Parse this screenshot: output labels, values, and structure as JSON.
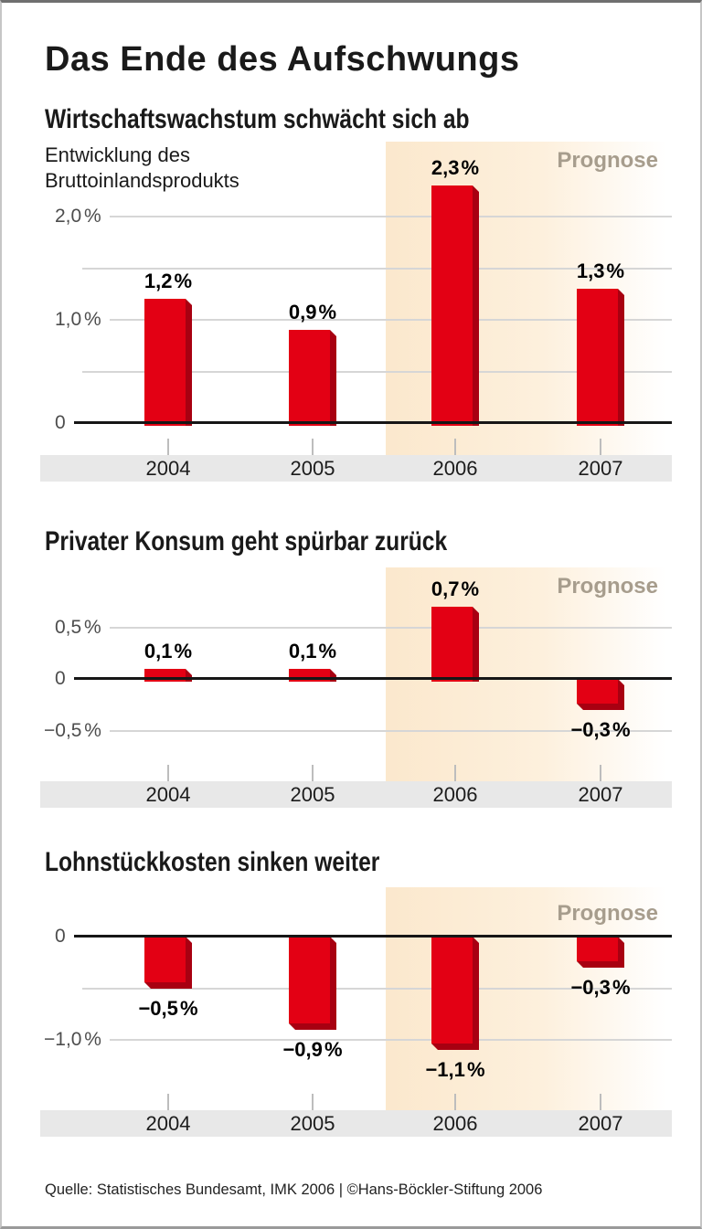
{
  "page": {
    "title": "Das Ende des Aufschwungs",
    "forecast_label": "Prognose",
    "source_line": "Quelle: Statistisches Bundesamt, IMK 2006 | ©Hans-Böckler-Stiftung 2006"
  },
  "colors": {
    "bar_red": "#e30014",
    "bar_dark_red": "#a80011",
    "forecast_band_strong": "#fbe8cd",
    "forecast_band_mid": "#fdf0dd",
    "forecast_text": "#a79d8d",
    "year_band_gray": "#e8e8e8",
    "gridline_gray": "#d6d6d6",
    "axis_black": "#161616",
    "tick_gray": "#bdbdbd"
  },
  "chart_data": [
    {
      "type": "bar",
      "title": "Wirtschaftswachstum schwächt sich ab",
      "subtitle": "Entwicklung des\nBruttoinlandsprodukts",
      "categories": [
        "2004",
        "2005",
        "2006",
        "2007"
      ],
      "values": [
        1.2,
        0.9,
        2.3,
        1.3
      ],
      "value_labels": [
        "1,2 %",
        "0,9 %",
        "2,3 %",
        "1,3 %"
      ],
      "unit": "percent",
      "ylim": [
        0,
        2.5
      ],
      "yticks": [
        {
          "value": 2.0,
          "label": "2,0 %"
        },
        {
          "value": 1.0,
          "label": "1,0 %"
        },
        {
          "value": 0,
          "label": "0"
        }
      ],
      "extra_gridlines": [
        1.5,
        0.5
      ],
      "forecast_categories": [
        "2006",
        "2007"
      ],
      "grid": true,
      "legend": false
    },
    {
      "type": "bar",
      "title": "Privater Konsum geht spürbar zurück",
      "subtitle": "",
      "categories": [
        "2004",
        "2005",
        "2006",
        "2007"
      ],
      "values": [
        0.1,
        0.1,
        0.7,
        -0.3
      ],
      "value_labels": [
        "0,1 %",
        "0,1 %",
        "0,7 %",
        "−0,3 %"
      ],
      "unit": "percent",
      "ylim": [
        -0.75,
        0.9
      ],
      "yticks": [
        {
          "value": 0.5,
          "label": "0,5 %"
        },
        {
          "value": 0,
          "label": "0"
        },
        {
          "value": -0.5,
          "label": "−0,5 %"
        }
      ],
      "extra_gridlines": [],
      "forecast_categories": [
        "2006",
        "2007"
      ],
      "grid": true,
      "legend": false
    },
    {
      "type": "bar",
      "title": "Lohnstückkosten sinken weiter",
      "subtitle": "",
      "categories": [
        "2004",
        "2005",
        "2006",
        "2007"
      ],
      "values": [
        -0.5,
        -0.9,
        -1.1,
        -0.3
      ],
      "value_labels": [
        "−0,5 %",
        "−0,9 %",
        "−1,1 %",
        "−0,3 %"
      ],
      "unit": "percent",
      "ylim": [
        -1.4,
        0.3
      ],
      "yticks": [
        {
          "value": 0,
          "label": "0"
        },
        {
          "value": -1.0,
          "label": "−1,0 %"
        }
      ],
      "extra_gridlines": [
        -0.5
      ],
      "forecast_categories": [
        "2006",
        "2007"
      ],
      "grid": true,
      "legend": false
    }
  ]
}
